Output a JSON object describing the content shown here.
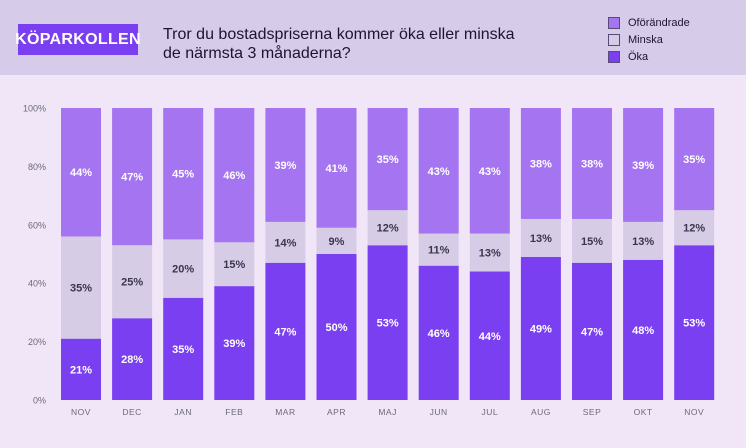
{
  "brand": "KÖPARKOLLEN",
  "title_line1": "Tror du bostadspriserna kommer öka eller minska",
  "title_line2": "de närmsta 3 månaderna?",
  "colors": {
    "okar": "#7a3ff0",
    "minska": "#d6cce6",
    "oforandrade": "#a574f0",
    "axis_text": "#6a6a7a",
    "label_light": "#ffffff",
    "label_dark": "#3a3550"
  },
  "chart_data": {
    "type": "bar",
    "stacked": true,
    "categories": [
      "NOV",
      "DEC",
      "JAN",
      "FEB",
      "MAR",
      "APR",
      "MAJ",
      "JUN",
      "JUL",
      "AUG",
      "SEP",
      "OKT",
      "NOV"
    ],
    "series": [
      {
        "name": "Öka",
        "values": [
          21,
          28,
          35,
          39,
          47,
          50,
          53,
          46,
          44,
          49,
          47,
          48,
          53
        ]
      },
      {
        "name": "Minska",
        "values": [
          35,
          25,
          20,
          15,
          14,
          9,
          12,
          11,
          13,
          13,
          15,
          13,
          12
        ]
      },
      {
        "name": "Oförändrade",
        "values": [
          44,
          47,
          45,
          46,
          39,
          41,
          35,
          43,
          43,
          38,
          38,
          39,
          35
        ]
      }
    ],
    "legend": [
      "Oförändrade",
      "Minska",
      "Öka"
    ],
    "y_ticks": [
      "0%",
      "20%",
      "40%",
      "60%",
      "80%",
      "100%"
    ],
    "ylim": [
      0,
      100
    ],
    "title": "Tror du bostadspriserna kommer öka eller minska de närmsta 3 månaderna?"
  }
}
